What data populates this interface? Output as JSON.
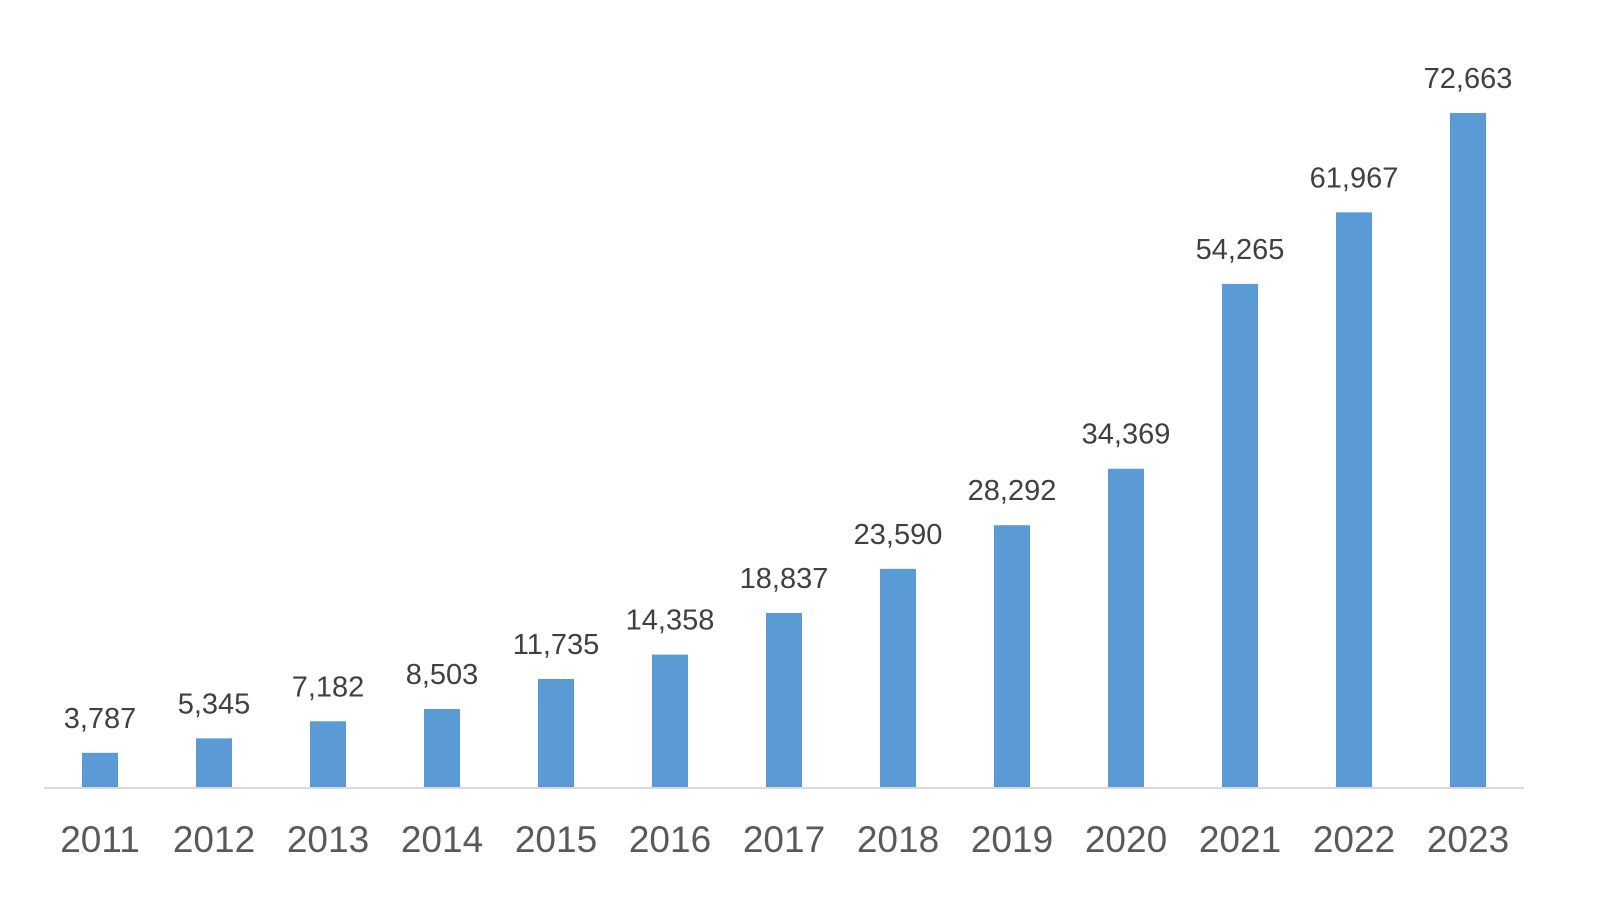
{
  "chart_data": {
    "type": "bar",
    "categories": [
      "2011",
      "2012",
      "2013",
      "2014",
      "2015",
      "2016",
      "2017",
      "2018",
      "2019",
      "2020",
      "2021",
      "2022",
      "2023"
    ],
    "series": [
      {
        "values": [
          3787,
          5345,
          7182,
          8503,
          11735,
          14358,
          18837,
          23590,
          28292,
          34369,
          54265,
          61967,
          72663
        ],
        "data_labels": [
          "3,787",
          "5,345",
          "7,182",
          "8,503",
          "11,735",
          "14,358",
          "18,837",
          "23,590",
          "28,292",
          "34,369",
          "54,265",
          "61,967",
          "72,663"
        ]
      }
    ],
    "title": "",
    "xlabel": "",
    "ylabel": "",
    "ylim": [
      0,
      80000
    ],
    "grid": false,
    "legend": "none",
    "colors": {
      "bar": "#5B9BD5",
      "axis_line": "#D9D9D9",
      "data_label": "#404040",
      "tick_label": "#595959"
    }
  }
}
